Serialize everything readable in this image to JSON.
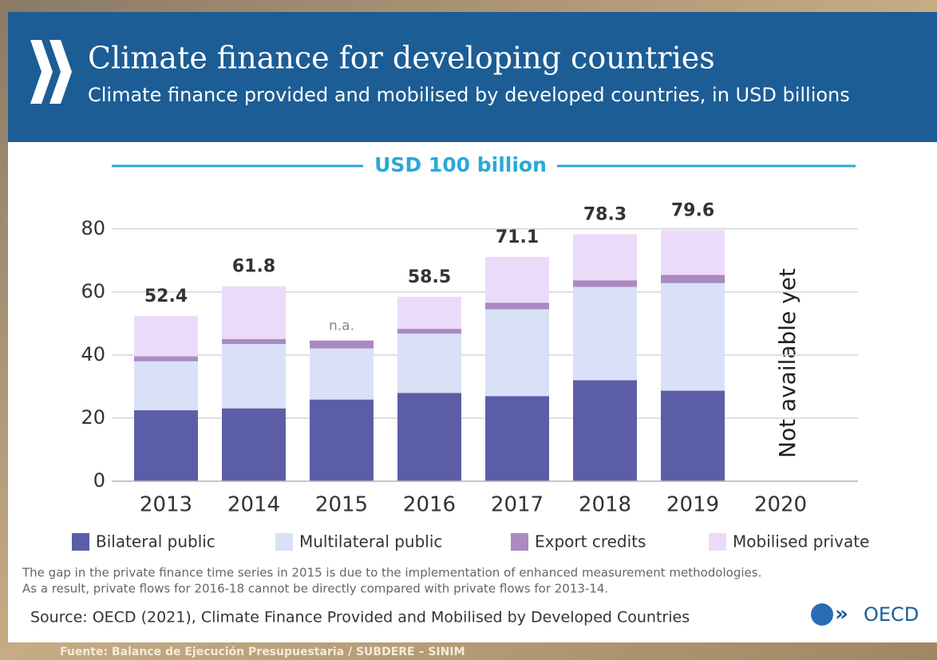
{
  "chart_data": {
    "type": "stacked_bar",
    "title": "Climate finance for developing countries",
    "subtitle": "Climate finance provided and mobilised by developed countries, in USD billions",
    "target_label": "USD 100 billion",
    "annotation": "Not available yet",
    "categories": [
      "2013",
      "2014",
      "2015",
      "2016",
      "2017",
      "2018",
      "2019",
      "2020"
    ],
    "series": [
      {
        "name": "Bilateral public",
        "color": "#5b5ea6",
        "values": [
          22.5,
          23.1,
          25.9,
          28.0,
          27.0,
          32.0,
          28.7,
          null
        ]
      },
      {
        "name": "Multilateral public",
        "color": "#d9e1f7",
        "values": [
          15.5,
          20.4,
          16.2,
          18.8,
          27.5,
          29.6,
          34.1,
          null
        ]
      },
      {
        "name": "Export credits",
        "color": "#a98ac2",
        "values": [
          1.6,
          1.6,
          2.5,
          1.5,
          2.1,
          2.1,
          2.6,
          null
        ]
      },
      {
        "name": "Mobilised private",
        "color": "#ecdbf8",
        "values": [
          12.8,
          16.7,
          null,
          10.2,
          14.5,
          14.6,
          14.2,
          null
        ]
      }
    ],
    "totals": {
      "values": [
        52.4,
        61.8,
        null,
        58.5,
        71.1,
        78.3,
        79.6,
        null
      ],
      "value_labels": [
        "52.4",
        "61.8",
        "n.a.",
        "58.5",
        "71.1",
        "78.3",
        "79.6",
        null
      ]
    },
    "ylim": [
      0,
      85
    ],
    "yticks": [
      0,
      20,
      40,
      60,
      80
    ],
    "grid": true,
    "notes": [
      "The gap in the private finance time series in 2015 is due to the implementation of enhanced measurement methodologies.",
      "As a result, private flows for 2016-18 cannot be directly compared with private flows for 2013-14."
    ],
    "source": "Source: OECD (2021), Climate Finance Provided and Mobilised by Developed Countries",
    "logo_text": "OECD",
    "caption": "Fuente: Balance de Ejecución Presupuestaria / SUBDERE – SINIM"
  }
}
